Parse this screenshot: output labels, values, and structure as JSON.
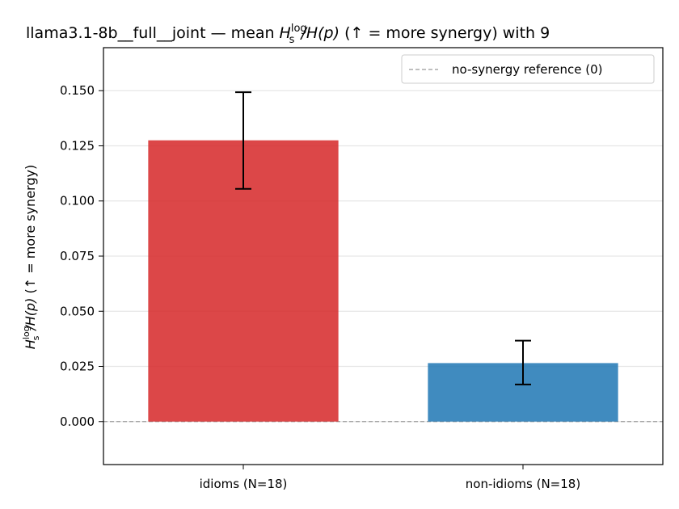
{
  "chart_data": {
    "type": "bar",
    "title_main": "llama3.1-8b__full__joint — mean ",
    "title_tail": "  (↑ = more synergy) with 9",
    "ylabel_tail": "  (↑ = more synergy)",
    "math": {
      "H": "H",
      "sup": "log",
      "sub": "s",
      "ratio": "/H(p)"
    },
    "categories": [
      "idioms (N=18)",
      "non-idioms (N=18)"
    ],
    "values": [
      0.1275,
      0.0265
    ],
    "errors_low": [
      0.1055,
      0.0168
    ],
    "errors_high": [
      0.1493,
      0.0367
    ],
    "colors": [
      "#d62728",
      "#1f77b4"
    ],
    "ylim": [
      -0.0195,
      0.1695
    ],
    "yticks": [
      "0.000",
      "0.025",
      "0.050",
      "0.075",
      "0.100",
      "0.125",
      "0.150"
    ],
    "ytick_values": [
      0,
      0.025,
      0.05,
      0.075,
      0.1,
      0.125,
      0.15
    ],
    "grid": true,
    "reference_line": 0,
    "legend": {
      "position": "top-right",
      "entries": [
        "no-synergy reference (0)"
      ]
    }
  }
}
